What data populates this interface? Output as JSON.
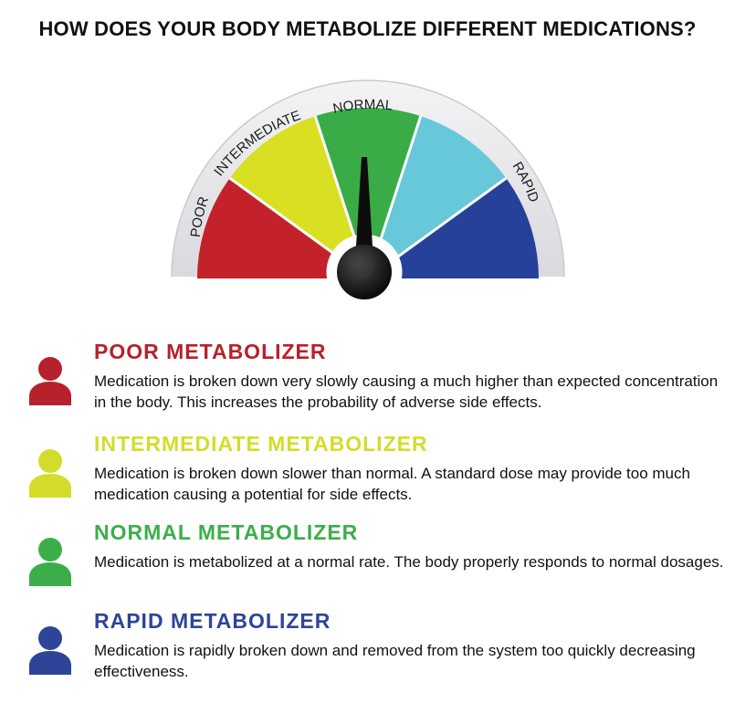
{
  "title": "HOW DOES YOUR BODY METABOLIZE DIFFERENT MEDICATIONS?",
  "gauge": {
    "labels": {
      "poor": "POOR",
      "intermediate": "INTERMEDIATE",
      "normal": "NORMAL",
      "rapid": "RAPID"
    },
    "segment_colors": [
      "#c4222a",
      "#d8e021",
      "#3aac47",
      "#66c8d8",
      "#25419a"
    ],
    "needle_level": "normal"
  },
  "legend": [
    {
      "title": "POOR METABOLIZER",
      "color": "#b7212b",
      "icon": "person-icon",
      "description": "Medication is broken down very slowly causing a much higher than expected concentration in the body. This increases the probability of adverse side effects."
    },
    {
      "title": "INTERMEDIATE METABOLIZER",
      "color": "#d4dc2b",
      "icon": "person-icon",
      "description": "Medication is broken down slower than normal. A standard dose may provide too much medication causing a potential for side effects."
    },
    {
      "title": "NORMAL METABOLIZER",
      "color": "#3cae49",
      "icon": "person-icon",
      "description": "Medication is metabolized at a normal rate. The body properly responds to normal dosages."
    },
    {
      "title": "RAPID METABOLIZER",
      "color": "#2d4499",
      "icon": "person-icon",
      "description": "Medication is rapidly broken down and removed from the system too quickly decreasing effectiveness."
    }
  ]
}
